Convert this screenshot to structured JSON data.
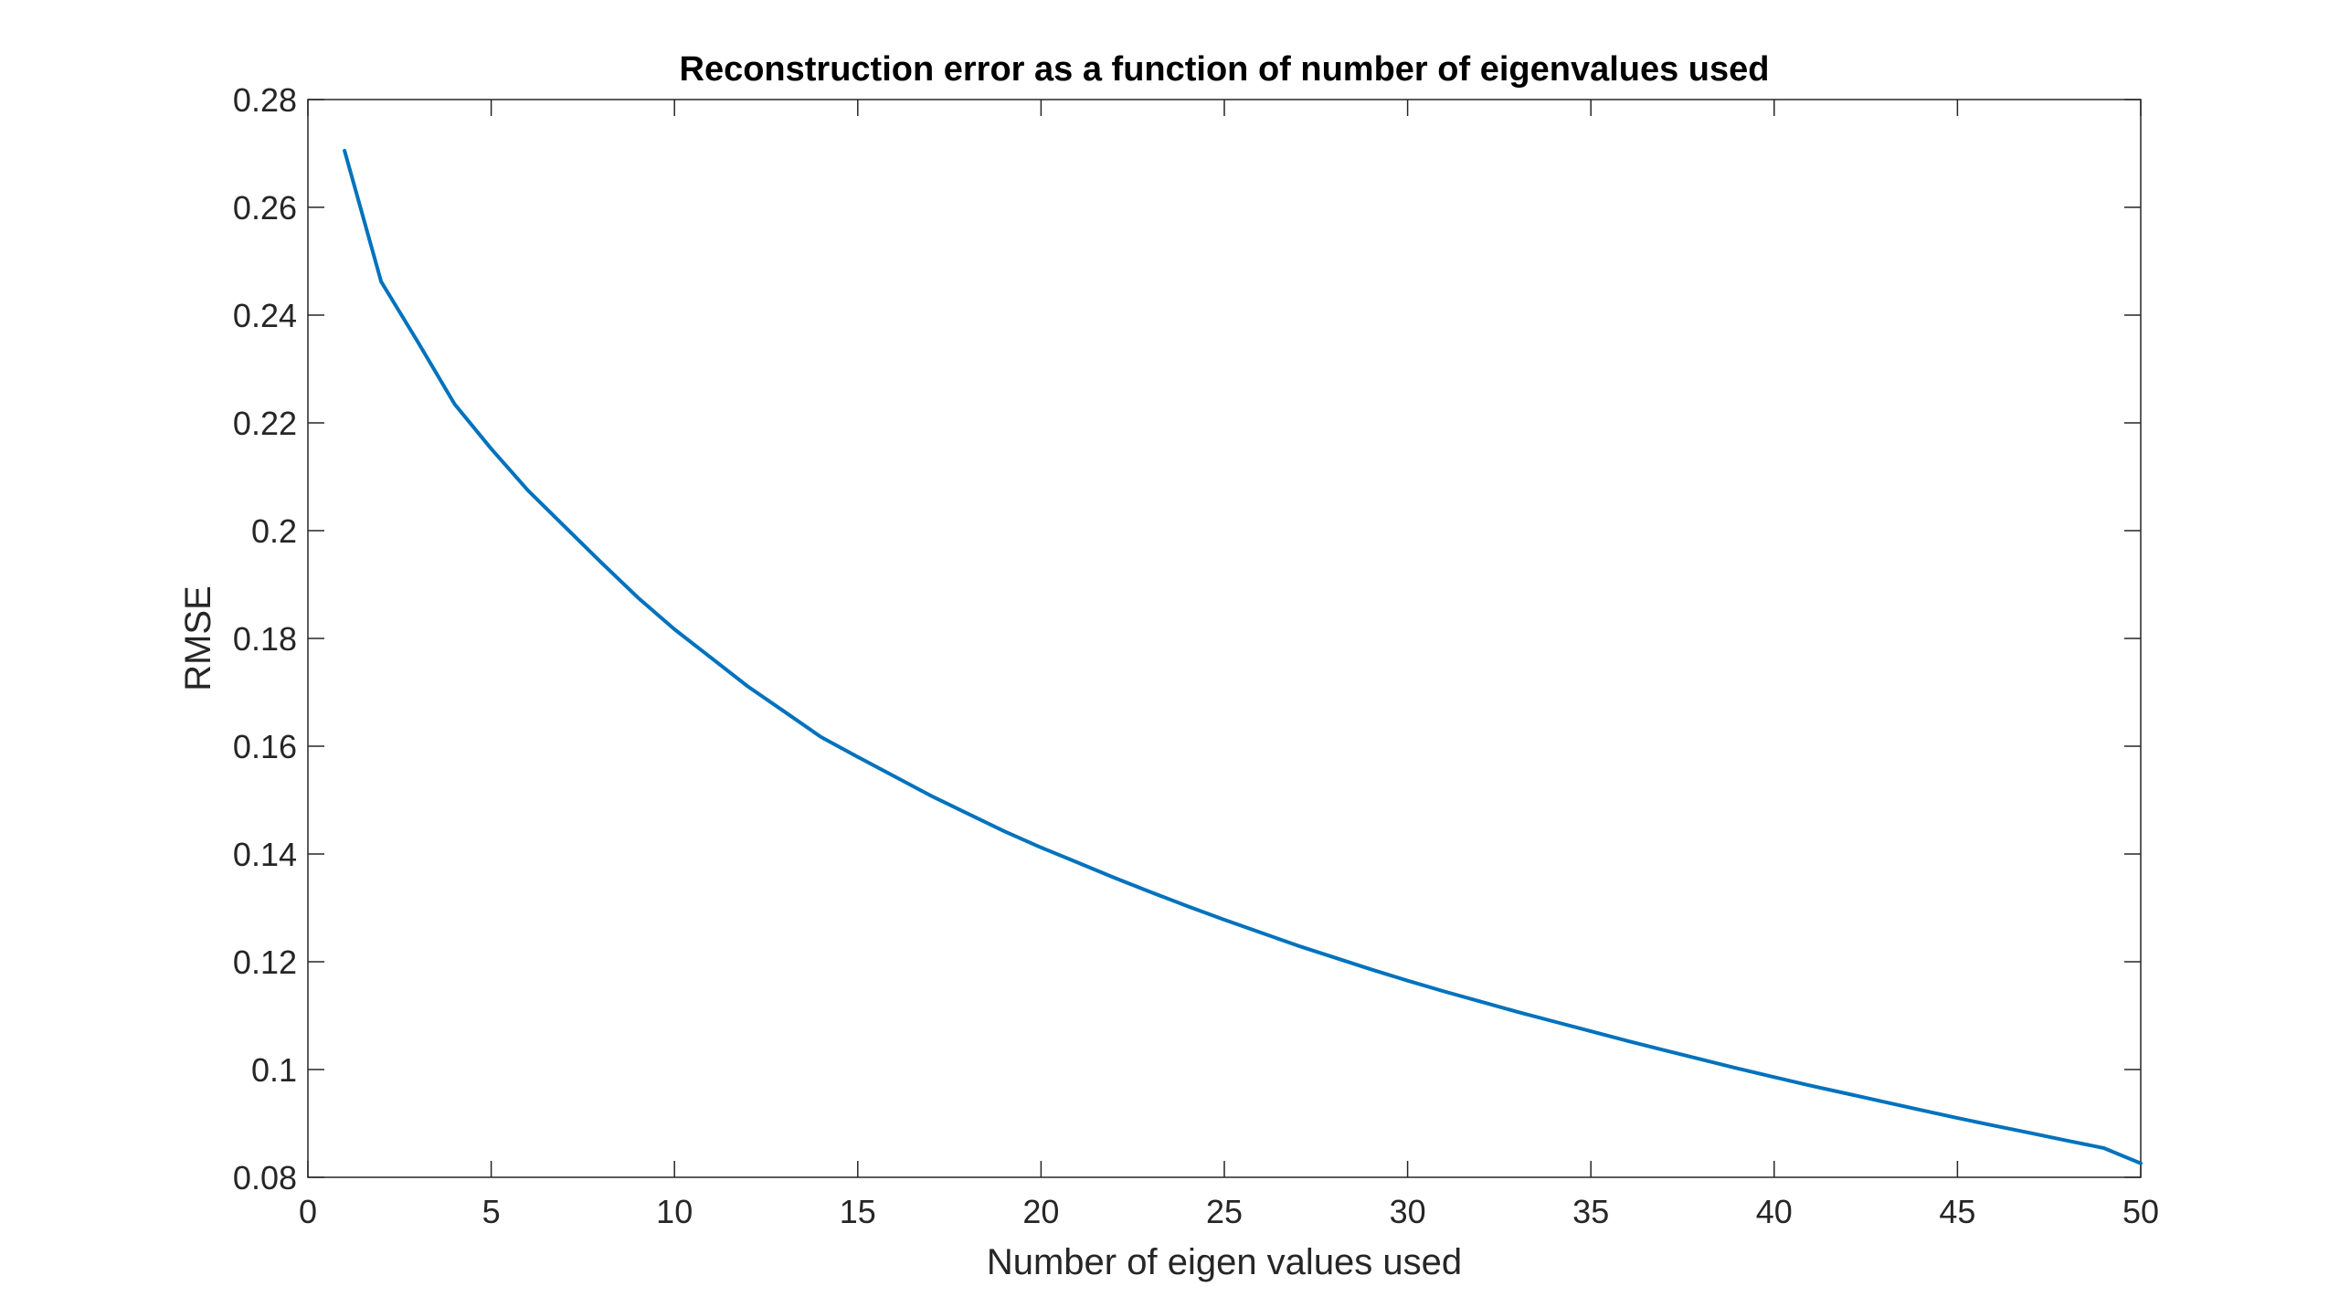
{
  "chart_data": {
    "type": "line",
    "title": "Reconstruction error as a function of number of eigenvalues used",
    "xlabel": "Number of eigen values used",
    "ylabel": "RMSE",
    "xlim": [
      0,
      50
    ],
    "ylim": [
      0.08,
      0.28
    ],
    "xticks": [
      0,
      5,
      10,
      15,
      20,
      25,
      30,
      35,
      40,
      45,
      50
    ],
    "xtick_labels": [
      "0",
      "5",
      "10",
      "15",
      "20",
      "25",
      "30",
      "35",
      "40",
      "45",
      "50"
    ],
    "yticks": [
      0.08,
      0.1,
      0.12,
      0.14,
      0.16,
      0.18,
      0.2,
      0.22,
      0.24,
      0.26,
      0.28
    ],
    "ytick_labels": [
      "0.08",
      "0.1",
      "0.12",
      "0.14",
      "0.16",
      "0.18",
      "0.2",
      "0.22",
      "0.24",
      "0.26",
      "0.28"
    ],
    "grid": false,
    "line_color": "#0072BD",
    "series": [
      {
        "x": [
          1,
          2,
          3,
          4,
          5,
          6,
          7,
          8,
          9,
          10,
          11,
          12,
          13,
          14,
          15,
          16,
          17,
          18,
          19,
          20,
          21,
          22,
          23,
          24,
          25,
          26,
          27,
          28,
          29,
          30,
          31,
          32,
          33,
          34,
          35,
          36,
          37,
          38,
          39,
          40,
          41,
          42,
          43,
          44,
          45,
          46,
          47,
          48,
          49,
          50
        ],
        "values": [
          0.2705,
          0.2462,
          0.235,
          0.2235,
          0.2152,
          0.2075,
          0.2008,
          0.1941,
          0.1876,
          0.1817,
          0.1764,
          0.1711,
          0.1664,
          0.1617,
          0.158,
          0.1544,
          0.1508,
          0.1475,
          0.1442,
          0.1412,
          0.1384,
          0.1356,
          0.1329,
          0.1303,
          0.1278,
          0.1254,
          0.123,
          0.1208,
          0.1186,
          0.1165,
          0.1145,
          0.1126,
          0.1107,
          0.1089,
          0.1071,
          0.1053,
          0.1036,
          0.1019,
          0.1002,
          0.0986,
          0.097,
          0.0955,
          0.094,
          0.0925,
          0.091,
          0.0896,
          0.0882,
          0.0868,
          0.0854,
          0.0826
        ]
      }
    ]
  }
}
